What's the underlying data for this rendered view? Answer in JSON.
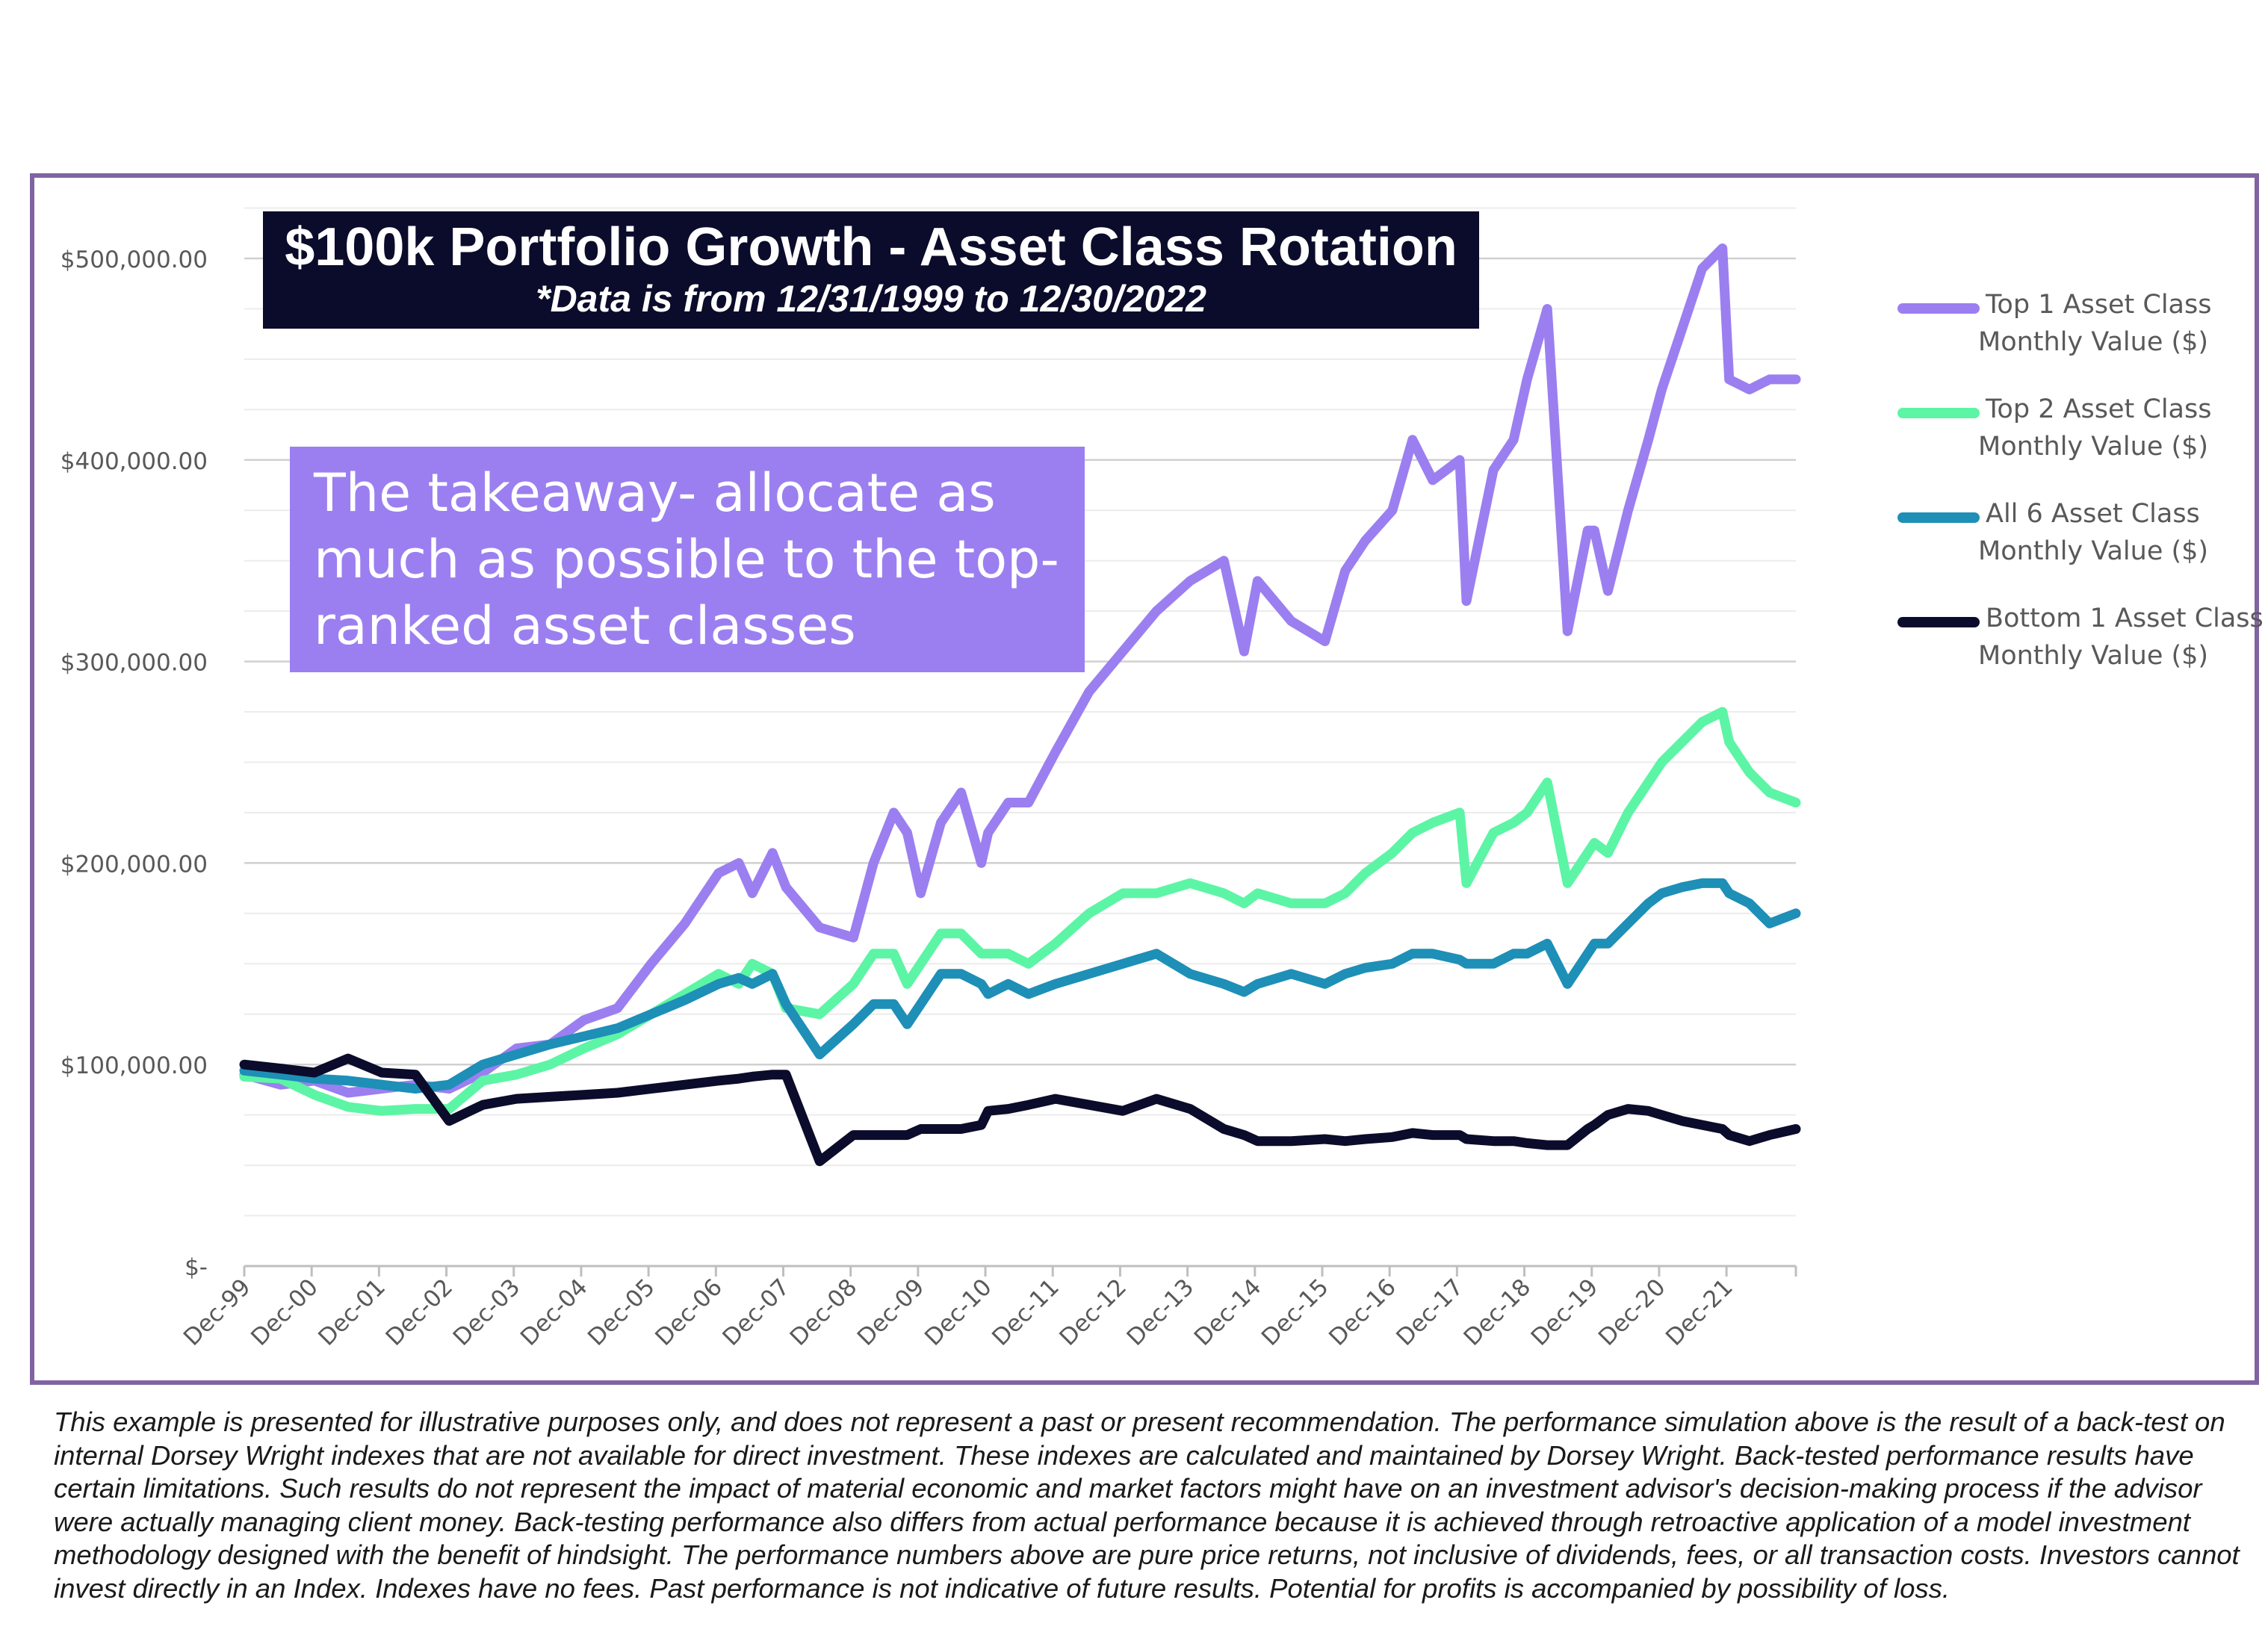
{
  "chart_data": {
    "type": "line",
    "title": "$100k Portfolio Growth - Asset Class Rotation",
    "subtitle": "*Data is from 12/31/1999 to 12/30/2022",
    "annotation": "The takeaway- allocate as much as possible to the top-ranked asset classes",
    "y_tick_labels": [
      "$-",
      "$100,000.00",
      "$200,000.00",
      "$300,000.00",
      "$400,000.00",
      "$500,000.00"
    ],
    "y_ticks": [
      0,
      100000,
      200000,
      300000,
      400000,
      500000
    ],
    "ylim": [
      0,
      520000
    ],
    "grid": true,
    "legend_position": "right",
    "x_tick_labels": [
      "Dec-99",
      "Dec-00",
      "Dec-01",
      "Dec-02",
      "Dec-03",
      "Dec-04",
      "Dec-05",
      "Dec-06",
      "Dec-07",
      "Dec-08",
      "Dec-09",
      "Dec-10",
      "Dec-11",
      "Dec-12",
      "Dec-13",
      "Dec-14",
      "Dec-15",
      "Dec-16",
      "Dec-17",
      "Dec-18",
      "Dec-19",
      "Dec-20",
      "Dec-21"
    ],
    "x": [
      1999.96,
      2000.5,
      2001.0,
      2001.5,
      2002.0,
      2002.5,
      2003.0,
      2003.5,
      2004.0,
      2004.5,
      2005.0,
      2005.5,
      2006.0,
      2006.5,
      2007.0,
      2007.3,
      2007.5,
      2007.8,
      2008.0,
      2008.5,
      2009.0,
      2009.3,
      2009.6,
      2009.8,
      2010.0,
      2010.3,
      2010.6,
      2010.9,
      2011.0,
      2011.3,
      2011.6,
      2012.0,
      2012.5,
      2013.0,
      2013.5,
      2014.0,
      2014.5,
      2014.8,
      2015.0,
      2015.5,
      2016.0,
      2016.3,
      2016.6,
      2017.0,
      2017.3,
      2017.6,
      2018.0,
      2018.1,
      2018.5,
      2018.8,
      2019.0,
      2019.3,
      2019.6,
      2019.9,
      2020.0,
      2020.2,
      2020.5,
      2020.8,
      2021.0,
      2021.3,
      2021.6,
      2021.9,
      2022.0,
      2022.3,
      2022.6,
      2022.99
    ],
    "series": [
      {
        "name": "Top 1 Asset Class Monthly Value ($)",
        "color": "#9b7ff0",
        "values": [
          95000,
          90000,
          92000,
          86000,
          88000,
          90000,
          88000,
          96000,
          108000,
          110000,
          122000,
          128000,
          150000,
          170000,
          195000,
          200000,
          185000,
          205000,
          188000,
          168000,
          163000,
          200000,
          225000,
          215000,
          185000,
          220000,
          235000,
          200000,
          215000,
          230000,
          230000,
          255000,
          285000,
          305000,
          325000,
          340000,
          350000,
          305000,
          340000,
          320000,
          310000,
          345000,
          360000,
          375000,
          410000,
          390000,
          400000,
          330000,
          395000,
          410000,
          440000,
          475000,
          315000,
          365000,
          365000,
          335000,
          375000,
          410000,
          435000,
          465000,
          495000,
          505000,
          440000,
          435000,
          440000,
          440000
        ]
      },
      {
        "name": "Top 2 Asset Class Monthly Value ($)",
        "color": "#5cf5a5",
        "values": [
          94000,
          93000,
          85000,
          79000,
          77000,
          78000,
          78000,
          92000,
          95000,
          100000,
          108000,
          115000,
          125000,
          135000,
          145000,
          140000,
          150000,
          145000,
          128000,
          125000,
          140000,
          155000,
          155000,
          140000,
          150000,
          165000,
          165000,
          155000,
          155000,
          155000,
          150000,
          160000,
          175000,
          185000,
          185000,
          190000,
          185000,
          180000,
          185000,
          180000,
          180000,
          185000,
          195000,
          205000,
          215000,
          220000,
          225000,
          190000,
          215000,
          220000,
          225000,
          240000,
          190000,
          205000,
          210000,
          205000,
          225000,
          240000,
          250000,
          260000,
          270000,
          275000,
          260000,
          245000,
          235000,
          230000
        ]
      },
      {
        "name": "All 6 Asset Class Monthly Value ($)",
        "color": "#1e8fb6",
        "values": [
          97000,
          95000,
          93000,
          92000,
          90000,
          88000,
          90000,
          100000,
          105000,
          110000,
          114000,
          118000,
          125000,
          132000,
          140000,
          143000,
          140000,
          145000,
          130000,
          105000,
          120000,
          130000,
          130000,
          120000,
          130000,
          145000,
          145000,
          140000,
          135000,
          140000,
          135000,
          140000,
          145000,
          150000,
          155000,
          145000,
          140000,
          136000,
          140000,
          145000,
          140000,
          145000,
          148000,
          150000,
          155000,
          155000,
          152000,
          150000,
          150000,
          155000,
          155000,
          160000,
          140000,
          155000,
          160000,
          160000,
          170000,
          180000,
          185000,
          188000,
          190000,
          190000,
          185000,
          180000,
          170000,
          175000
        ]
      },
      {
        "name": "Bottom 1 Asset Class Monthly Value ($)",
        "color": "#0b0b2b",
        "values": [
          100000,
          98000,
          96000,
          103000,
          96000,
          95000,
          72000,
          80000,
          83000,
          84000,
          85000,
          86000,
          88000,
          90000,
          92000,
          93000,
          94000,
          95000,
          95000,
          52000,
          65000,
          65000,
          65000,
          65000,
          68000,
          68000,
          68000,
          70000,
          77000,
          78000,
          80000,
          83000,
          80000,
          77000,
          83000,
          78000,
          68000,
          65000,
          62000,
          62000,
          63000,
          62000,
          63000,
          64000,
          66000,
          65000,
          65000,
          63000,
          62000,
          62000,
          61000,
          60000,
          60000,
          68000,
          70000,
          75000,
          78000,
          77000,
          75000,
          72000,
          70000,
          68000,
          65000,
          62000,
          65000,
          68000
        ]
      }
    ]
  },
  "legend": [
    {
      "line1": "Top 1 Asset Class",
      "line2": "Monthly Value ($)",
      "color": "#9b7ff0"
    },
    {
      "line1": "Top 2 Asset Class",
      "line2": "Monthly Value ($)",
      "color": "#5cf5a5"
    },
    {
      "line1": "All 6 Asset Class",
      "line2": "Monthly Value ($)",
      "color": "#1e8fb6"
    },
    {
      "line1": "Bottom 1 Asset Class",
      "line2": "Monthly Value ($)",
      "color": "#0b0b2b"
    }
  ],
  "disclaimer": "This example is presented for illustrative purposes only, and does not represent a past or present recommendation. The performance simulation above is the result of a back-test on internal Dorsey Wright indexes that are not available for direct investment.  These indexes are calculated and maintained by Dorsey Wright.  Back-tested performance results have certain limitations.  Such results do not represent the impact of material economic and market factors might have on an investment advisor's decision-making process if the advisor were actually managing client money.  Back-testing performance also differs from actual performance because it is achieved through retroactive application of a model investment methodology designed with the benefit of hindsight. The performance numbers above are pure price returns, not inclusive of dividends, fees, or all transaction costs.  Investors cannot invest directly in an Index.  Indexes have no fees.  Past performance is not indicative of future results.  Potential for profits is accompanied by possibility of loss.",
  "colors": {
    "frame": "#8064a2",
    "title_bg": "#0b0b2b",
    "takeaway_bg": "#9b7ff0"
  }
}
